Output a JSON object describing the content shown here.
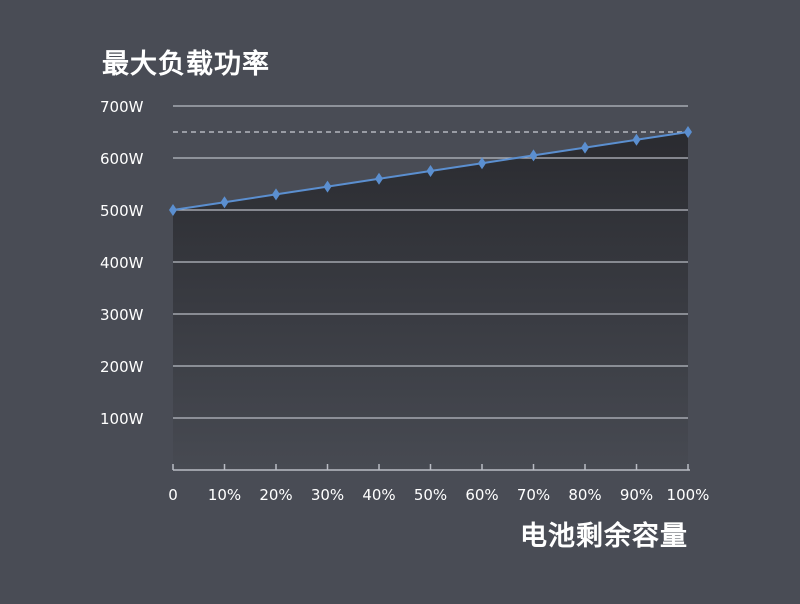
{
  "chart_data": {
    "type": "line",
    "title": "最大负载功率",
    "xlabel": "电池剩余容量",
    "ylabel": "",
    "categories": [
      "0",
      "10%",
      "20%",
      "30%",
      "40%",
      "50%",
      "60%",
      "70%",
      "80%",
      "90%",
      "100%"
    ],
    "series": [
      {
        "values": [
          500,
          515,
          530,
          545,
          560,
          575,
          590,
          605,
          620,
          635,
          650
        ]
      }
    ],
    "yticks": [
      "100W",
      "200W",
      "300W",
      "400W",
      "500W",
      "600W",
      "700W"
    ],
    "ytick_values": [
      100,
      200,
      300,
      400,
      500,
      600,
      700
    ],
    "ylim": [
      0,
      700
    ],
    "reference_line": 650,
    "grid": true,
    "colors": {
      "background": "#494c55",
      "line": "#5b8fd0",
      "grid": "#b9bcc4",
      "text": "#ffffff"
    }
  }
}
